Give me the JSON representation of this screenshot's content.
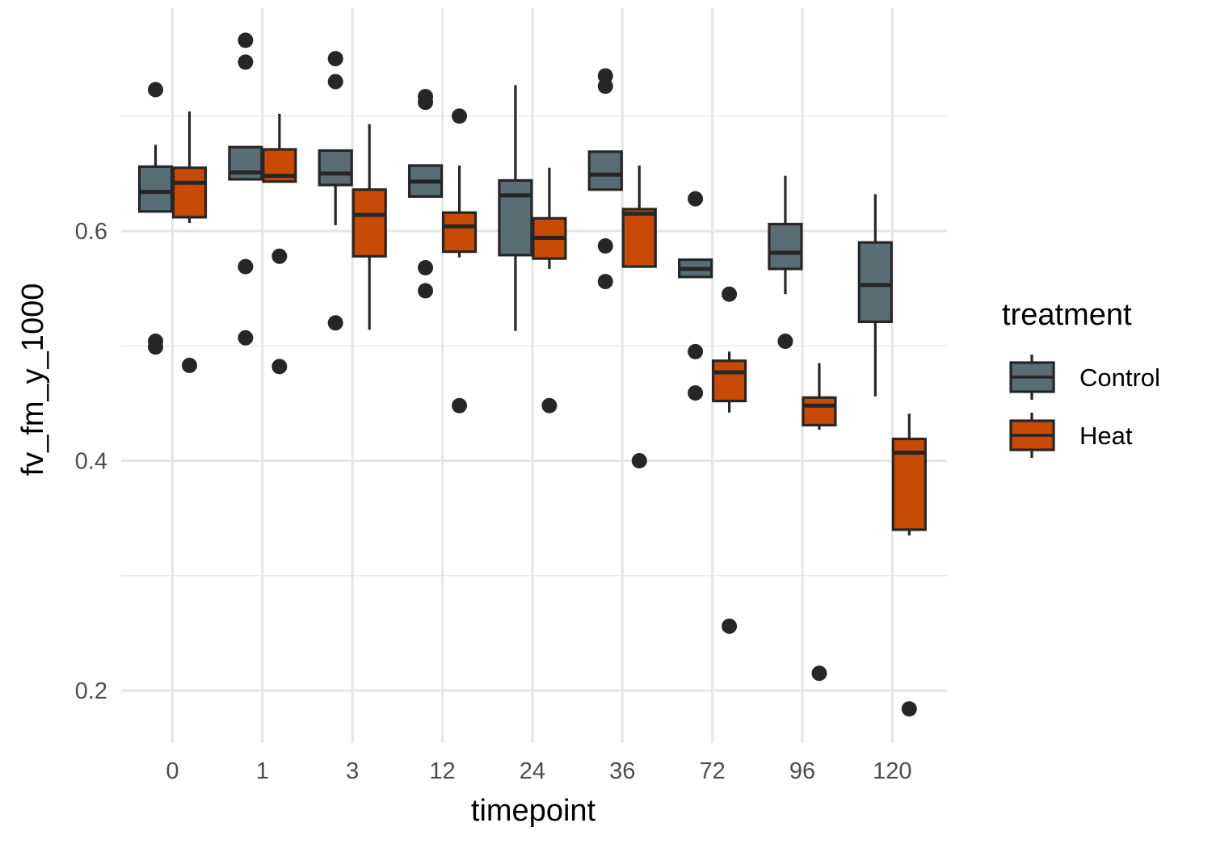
{
  "chart_data": {
    "type": "boxplot",
    "xlabel": "timepoint",
    "ylabel": "fv_fm_y_1000",
    "categories": [
      "0",
      "1",
      "3",
      "12",
      "24",
      "36",
      "72",
      "96",
      "120"
    ],
    "ylim": [
      0.155,
      0.8
    ],
    "y_major_ticks": [
      0.2,
      0.4,
      0.6
    ],
    "y_tick_labels": [
      "0.2",
      "0.4",
      "0.6"
    ],
    "y_minor_ticks": [
      0.3,
      0.5,
      0.7
    ],
    "grid": true,
    "legend": {
      "title": "treatment",
      "position": "right"
    },
    "series": [
      {
        "name": "Control",
        "color": "#596e74",
        "boxes": [
          {
            "q1": 0.617,
            "median": 0.634,
            "q3": 0.656,
            "whisker_low": 0.617,
            "whisker_high": 0.675,
            "outliers": [
              0.723,
              0.504,
              0.499
            ]
          },
          {
            "q1": 0.645,
            "median": 0.651,
            "q3": 0.673,
            "whisker_low": 0.645,
            "whisker_high": 0.673,
            "outliers": [
              0.766,
              0.747,
              0.569,
              0.507
            ]
          },
          {
            "q1": 0.64,
            "median": 0.65,
            "q3": 0.67,
            "whisker_low": 0.605,
            "whisker_high": 0.67,
            "outliers": [
              0.75,
              0.73,
              0.52
            ]
          },
          {
            "q1": 0.63,
            "median": 0.643,
            "q3": 0.657,
            "whisker_low": 0.63,
            "whisker_high": 0.657,
            "outliers": [
              0.717,
              0.712,
              0.568,
              0.548
            ]
          },
          {
            "q1": 0.579,
            "median": 0.631,
            "q3": 0.644,
            "whisker_low": 0.513,
            "whisker_high": 0.727,
            "outliers": []
          },
          {
            "q1": 0.636,
            "median": 0.649,
            "q3": 0.669,
            "whisker_low": 0.636,
            "whisker_high": 0.669,
            "outliers": [
              0.735,
              0.726,
              0.587,
              0.556
            ]
          },
          {
            "q1": 0.56,
            "median": 0.567,
            "q3": 0.575,
            "whisker_low": 0.56,
            "whisker_high": 0.575,
            "outliers": [
              0.628,
              0.495,
              0.459
            ]
          },
          {
            "q1": 0.567,
            "median": 0.581,
            "q3": 0.606,
            "whisker_low": 0.545,
            "whisker_high": 0.648,
            "outliers": [
              0.504
            ]
          },
          {
            "q1": 0.521,
            "median": 0.553,
            "q3": 0.59,
            "whisker_low": 0.456,
            "whisker_high": 0.632,
            "outliers": []
          }
        ]
      },
      {
        "name": "Heat",
        "color": "#c84a05",
        "boxes": [
          {
            "q1": 0.612,
            "median": 0.642,
            "q3": 0.655,
            "whisker_low": 0.607,
            "whisker_high": 0.704,
            "outliers": [
              0.483
            ]
          },
          {
            "q1": 0.643,
            "median": 0.648,
            "q3": 0.671,
            "whisker_low": 0.643,
            "whisker_high": 0.702,
            "outliers": [
              0.578,
              0.482
            ]
          },
          {
            "q1": 0.578,
            "median": 0.614,
            "q3": 0.636,
            "whisker_low": 0.514,
            "whisker_high": 0.693,
            "outliers": []
          },
          {
            "q1": 0.582,
            "median": 0.604,
            "q3": 0.616,
            "whisker_low": 0.577,
            "whisker_high": 0.657,
            "outliers": [
              0.7,
              0.448
            ]
          },
          {
            "q1": 0.576,
            "median": 0.594,
            "q3": 0.611,
            "whisker_low": 0.567,
            "whisker_high": 0.655,
            "outliers": [
              0.448
            ]
          },
          {
            "q1": 0.569,
            "median": 0.615,
            "q3": 0.619,
            "whisker_low": 0.569,
            "whisker_high": 0.657,
            "outliers": [
              0.4
            ]
          },
          {
            "q1": 0.452,
            "median": 0.477,
            "q3": 0.487,
            "whisker_low": 0.442,
            "whisker_high": 0.495,
            "outliers": [
              0.545,
              0.256
            ]
          },
          {
            "q1": 0.431,
            "median": 0.448,
            "q3": 0.455,
            "whisker_low": 0.427,
            "whisker_high": 0.485,
            "outliers": [
              0.215
            ]
          },
          {
            "q1": 0.34,
            "median": 0.407,
            "q3": 0.419,
            "whisker_low": 0.335,
            "whisker_high": 0.441,
            "outliers": [
              0.184
            ]
          }
        ]
      }
    ]
  }
}
